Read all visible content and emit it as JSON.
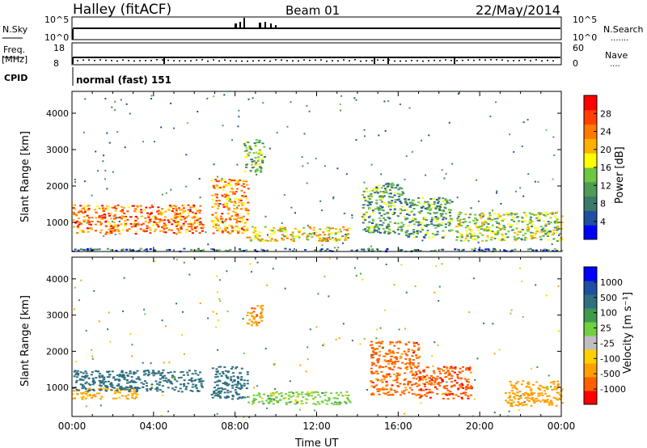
{
  "header": {
    "station": "Halley (fitACF)",
    "beam": "Beam 01",
    "date": "22/May/2014"
  },
  "panels": {
    "nsky": {
      "left_label": "N.Sky",
      "right_label": "N.Search",
      "ticks_left": [
        "10^5",
        "10^0"
      ],
      "ticks_right": [
        "10^5",
        "10^0"
      ]
    },
    "freq": {
      "left_label_1": "Freq.",
      "left_label_2": "[MHz]",
      "right_label": "Nave",
      "ticks_left": [
        "18",
        "8"
      ],
      "ticks_right": [
        "60",
        "0"
      ]
    },
    "cpid": {
      "left_label": "CPID",
      "text": "normal (fast) 151"
    }
  },
  "colors": {
    "power_scale": [
      "#0000ff",
      "#1f4fa0",
      "#3a7a6a",
      "#4f9a55",
      "#6cc840",
      "#ffff00",
      "#ffb000",
      "#ff7a00",
      "#ff4000",
      "#ff0000"
    ],
    "velocity_scale": [
      "#ff0000",
      "#ff6000",
      "#ffa000",
      "#ffd000",
      "#bebebe",
      "#70d040",
      "#3f9a50",
      "#2f6f80",
      "#1f4fa0",
      "#0000ff"
    ]
  },
  "chart_data": [
    {
      "type": "heatmap",
      "name": "power",
      "ylabel": "Slant Range [km]",
      "xlabel": "",
      "colorbar_label": "Power [dB]",
      "colorbar_ticks": [
        "4",
        "8",
        "12",
        "16",
        "20",
        "24",
        "28"
      ],
      "y_ticks": [
        "1000",
        "2000",
        "3000",
        "4000"
      ],
      "y_tick_values": [
        1000,
        2000,
        3000,
        4000
      ],
      "ylim": [
        200,
        4600
      ],
      "xlim_hours": [
        0,
        24
      ],
      "features": [
        {
          "t0": 0.0,
          "t1": 6.4,
          "r0": 700,
          "r1": 1500,
          "level": 24
        },
        {
          "t0": 6.8,
          "t1": 8.6,
          "r0": 700,
          "r1": 2200,
          "level": 22
        },
        {
          "t0": 8.4,
          "t1": 9.4,
          "r0": 2400,
          "r1": 3300,
          "level": 12
        },
        {
          "t0": 8.5,
          "t1": 13.6,
          "r0": 500,
          "r1": 900,
          "level": 18
        },
        {
          "t0": 14.2,
          "t1": 16.2,
          "r0": 700,
          "r1": 2100,
          "level": 10
        },
        {
          "t0": 16.2,
          "t1": 18.6,
          "r0": 600,
          "r1": 1700,
          "level": 10
        },
        {
          "t0": 18.8,
          "t1": 24.0,
          "r0": 500,
          "r1": 1300,
          "level": 14
        },
        {
          "t0": 0.0,
          "t1": 24.0,
          "r0": 220,
          "r1": 300,
          "level": 6
        }
      ]
    },
    {
      "type": "heatmap",
      "name": "velocity",
      "ylabel": "Slant Range [km]",
      "xlabel": "Time UT",
      "colorbar_label": "Velocity [m s⁻¹]",
      "colorbar_ticks": [
        "-1000",
        "-500",
        "-100",
        "-25",
        "25",
        "100",
        "500",
        "1000"
      ],
      "y_ticks": [
        "1000",
        "2000",
        "3000",
        "4000"
      ],
      "y_tick_values": [
        1000,
        2000,
        3000,
        4000
      ],
      "ylim": [
        200,
        4600
      ],
      "xlim_hours": [
        0,
        24
      ],
      "x_ticks": [
        "00:00",
        "04:00",
        "08:00",
        "12:00",
        "16:00",
        "20:00",
        "00:00"
      ],
      "x_tick_values": [
        0,
        4,
        8,
        12,
        16,
        20,
        24
      ],
      "features": [
        {
          "t0": 0.0,
          "t1": 3.2,
          "r0": 700,
          "r1": 1000,
          "level": -150
        },
        {
          "t0": 0.0,
          "t1": 6.4,
          "r0": 900,
          "r1": 1500,
          "level": 300
        },
        {
          "t0": 6.8,
          "t1": 8.6,
          "r0": 700,
          "r1": 1600,
          "level": 200
        },
        {
          "t0": 8.6,
          "t1": 13.6,
          "r0": 550,
          "r1": 900,
          "level": 0
        },
        {
          "t0": 8.5,
          "t1": 9.3,
          "r0": 2700,
          "r1": 3300,
          "level": -400
        },
        {
          "t0": 14.6,
          "t1": 17.0,
          "r0": 800,
          "r1": 2300,
          "level": -700
        },
        {
          "t0": 17.0,
          "t1": 19.6,
          "r0": 700,
          "r1": 1600,
          "level": -800
        },
        {
          "t0": 21.2,
          "t1": 24.0,
          "r0": 500,
          "r1": 1200,
          "level": -300
        }
      ]
    }
  ]
}
